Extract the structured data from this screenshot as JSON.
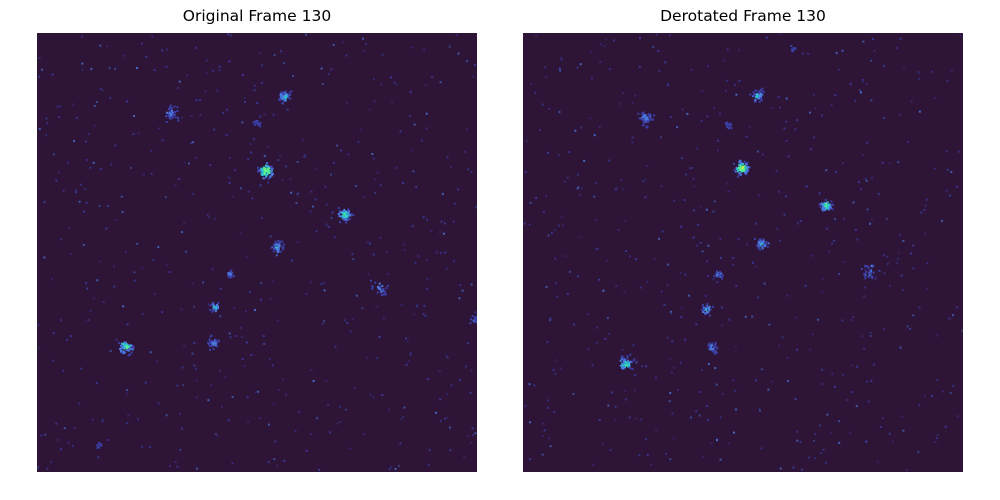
{
  "figure": {
    "background_color": "#ffffff",
    "image_background_color": "#2e1437"
  },
  "panels": [
    {
      "title": "Original Frame 130",
      "content": "scattered bright spots on dark purple noise field"
    },
    {
      "title": "Derotated Frame 130",
      "content": "same field, rotated; bright spots on dark purple noise"
    }
  ],
  "colormap": [
    "#2e1437",
    "#3b3fa6",
    "#4a7be0",
    "#2ec4c8",
    "#5ef08a",
    "#c8f048"
  ]
}
